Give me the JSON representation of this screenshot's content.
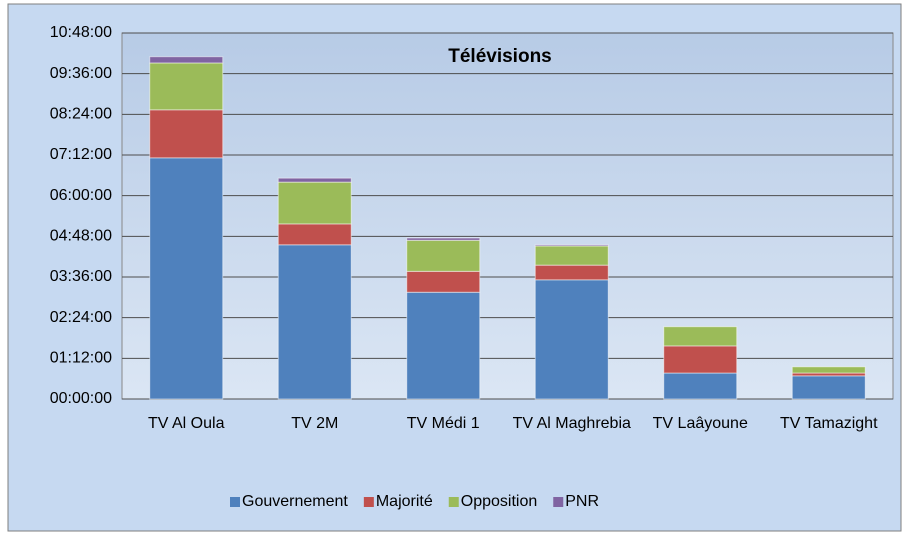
{
  "chart_data": {
    "type": "bar",
    "stacked": true,
    "title": "Télévisions",
    "categories": [
      "TV Al Oula",
      "TV 2M",
      "TV Médi 1",
      "TV Al Maghrebia",
      "TV Laâyoune",
      "TV Tamazight"
    ],
    "series": [
      {
        "name": "Gouvernement",
        "color": "#4f81bd",
        "values": [
          427,
          273,
          189,
          211,
          46,
          41
        ]
      },
      {
        "name": "Majorité",
        "color": "#c0504d",
        "values": [
          85,
          37,
          37,
          26,
          48,
          5
        ]
      },
      {
        "name": "Opposition",
        "color": "#9bbb59",
        "values": [
          83,
          74,
          55,
          34,
          34,
          11
        ]
      },
      {
        "name": "PNR",
        "color": "#8064a2",
        "values": [
          11,
          7,
          4,
          2,
          0,
          0
        ]
      }
    ],
    "ylim": [
      0,
      648
    ],
    "yticks": [
      {
        "value": 0,
        "label": "00:00:00"
      },
      {
        "value": 72,
        "label": "01:12:00"
      },
      {
        "value": 144,
        "label": "02:24:00"
      },
      {
        "value": 216,
        "label": "03:36:00"
      },
      {
        "value": 288,
        "label": "04:48:00"
      },
      {
        "value": 360,
        "label": "06:00:00"
      },
      {
        "value": 432,
        "label": "07:12:00"
      },
      {
        "value": 504,
        "label": "08:24:00"
      },
      {
        "value": 576,
        "label": "09:36:00"
      },
      {
        "value": 648,
        "label": "10:48:00"
      }
    ],
    "grid": true,
    "legend": "bottom"
  }
}
